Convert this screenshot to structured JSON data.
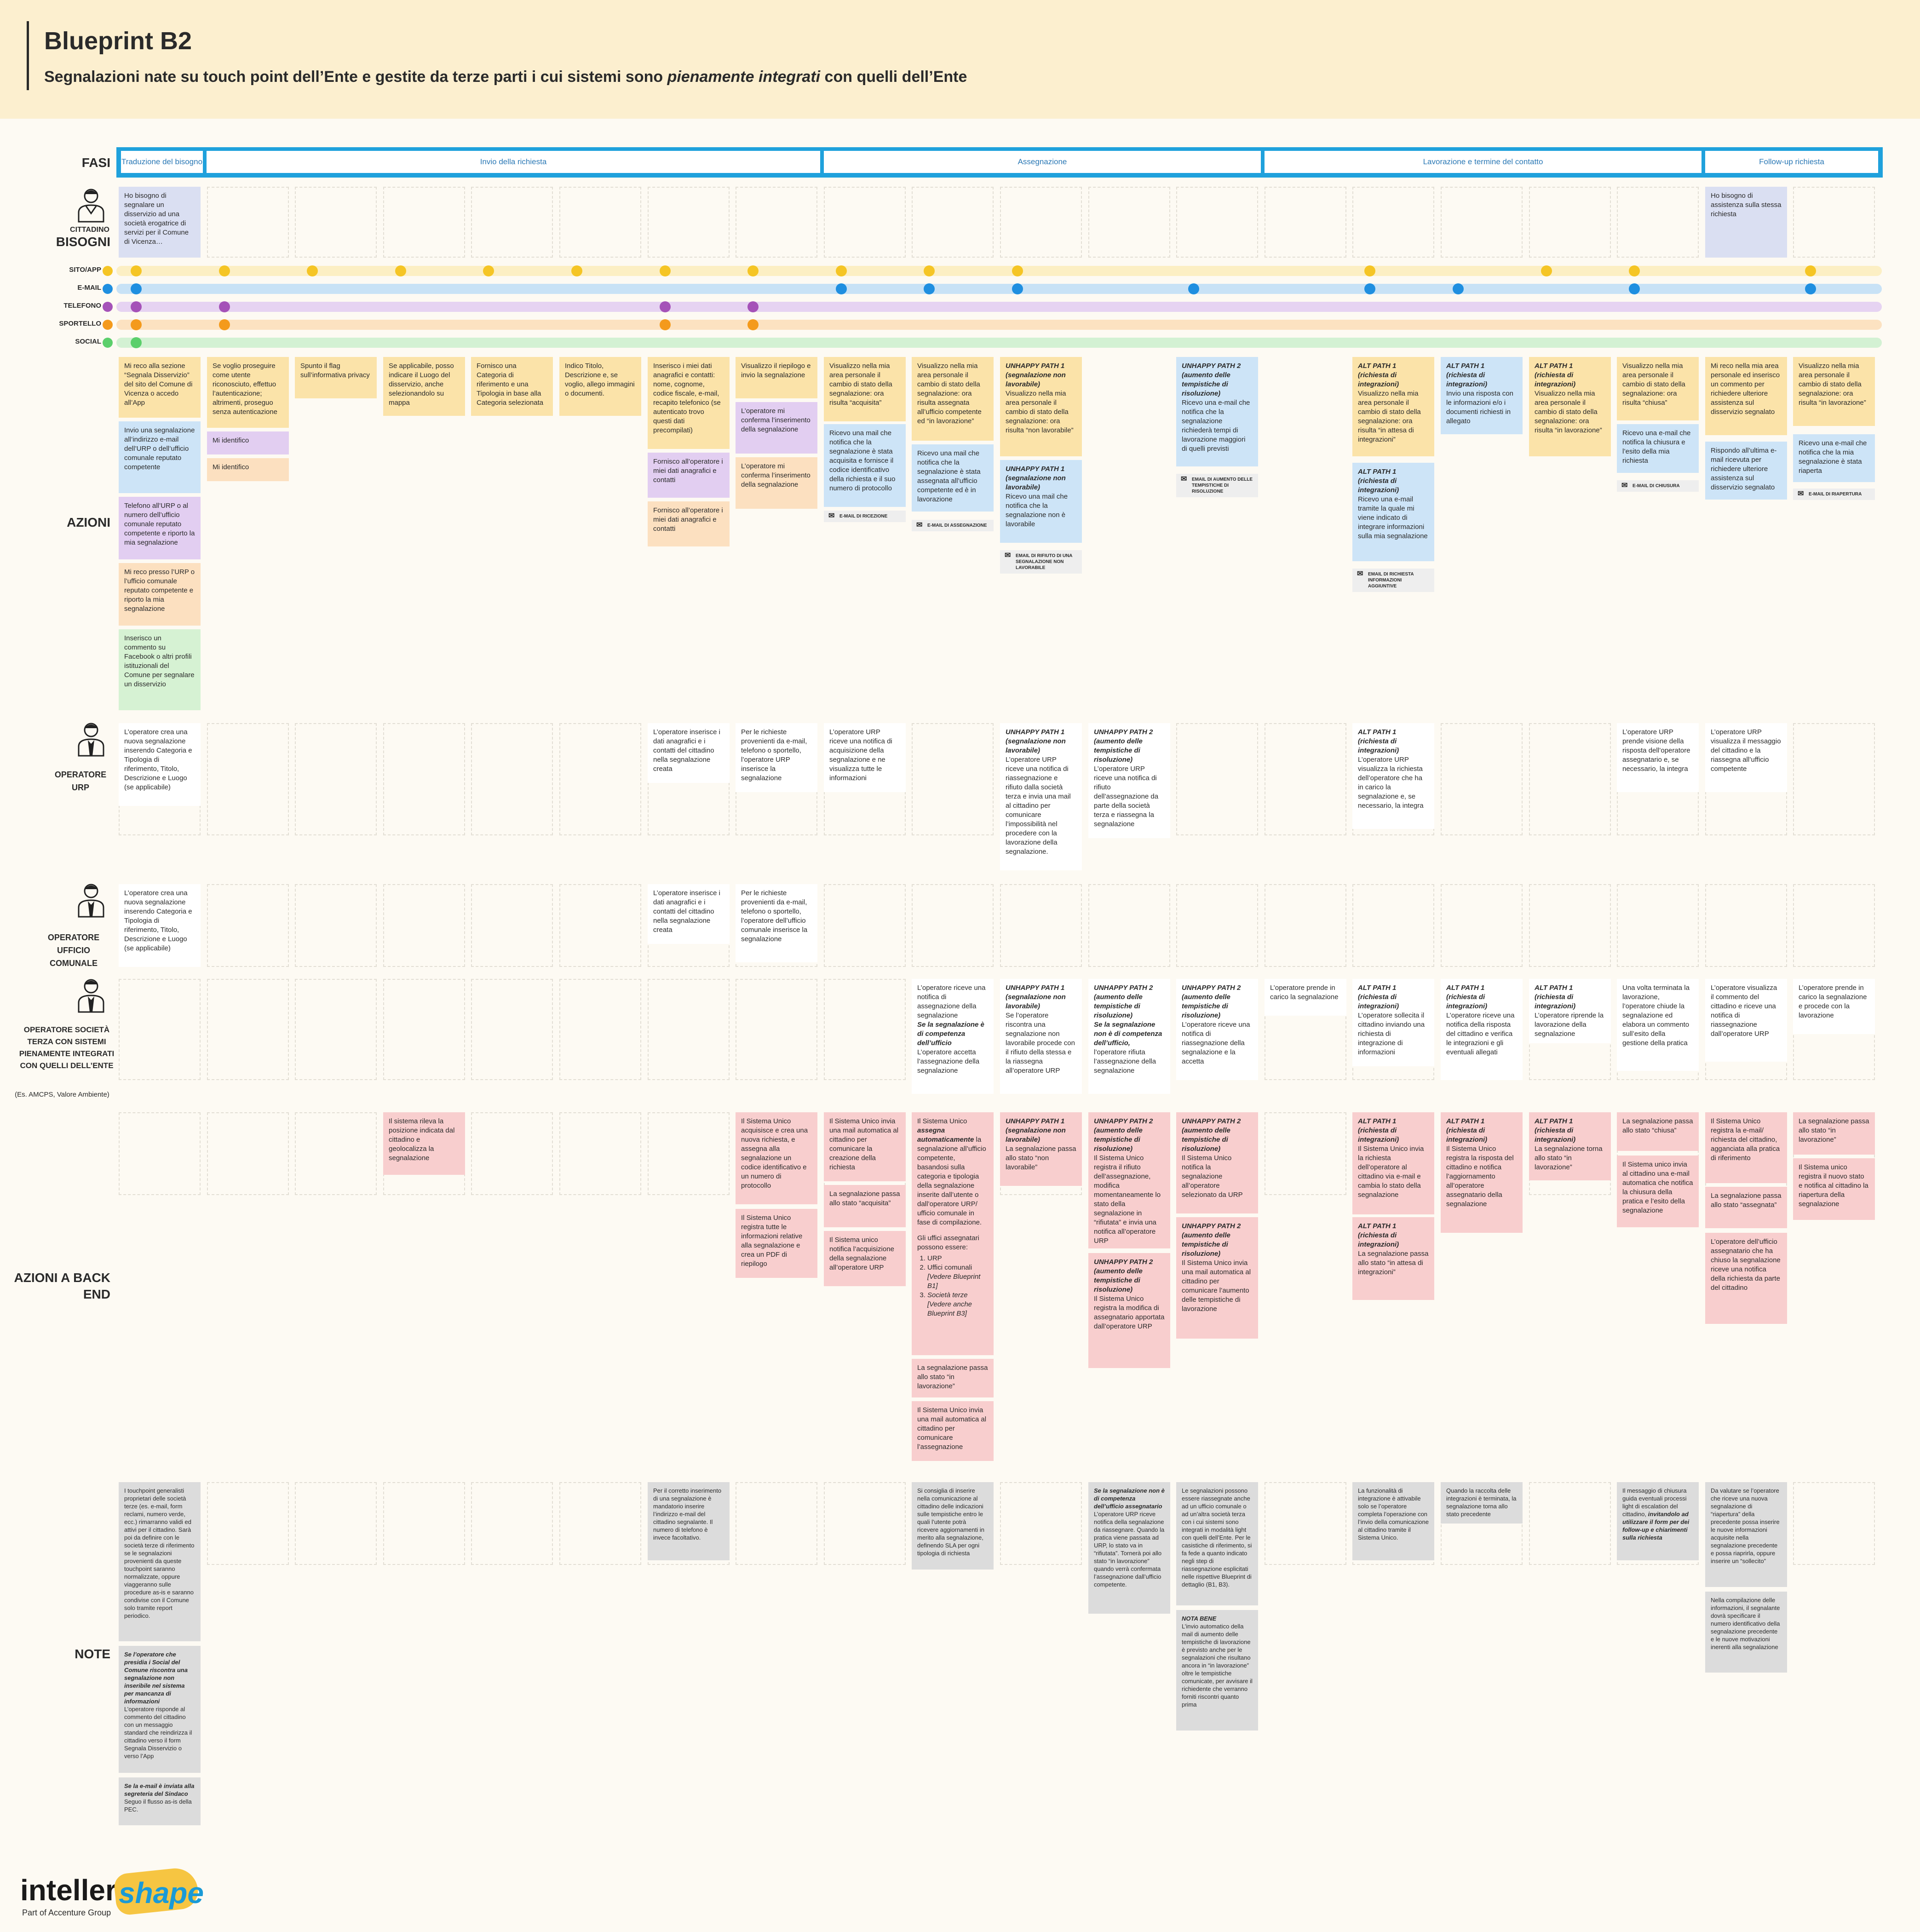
{
  "header": {
    "title": "Blueprint B2",
    "subtitle_pre": "Segnalazioni nate su touch point dell’Ente e gestite da terze parti i cui sistemi sono ",
    "subtitle_em": "pienamente integrati",
    "subtitle_post": " con quelli dell’Ente"
  },
  "labels": {
    "fasi": "FASI",
    "cittadino_role": "CITTADINO",
    "bisogni": "BISOGNI",
    "azioni": "AZIONI",
    "operatore_urp": "OPERATORE URP",
    "operatore_ufficio": "OPERATORE UFFICIO COMUNALE",
    "operatore_terza": "OPERATORE SOCIETÀ TERZA CON SISTEMI PIENAMENTE INTEGRATI CON QUELLI DELL’ENTE",
    "operatore_terza_note": "(Es. AMCPS, Valore Ambiente)",
    "azioni_backend": "AZIONI A BACK END",
    "note": "NOTE"
  },
  "phases": [
    "Traduzione del bisogno",
    "Invio della richiesta",
    "Assegnazione",
    "Lavorazione e termine del contatto",
    "Follow-up richiesta"
  ],
  "channels": [
    {
      "label": "SITO/APP",
      "color": "#f5c525",
      "lane": "#fcefc4"
    },
    {
      "label": "E-MAIL",
      "color": "#1f8fe0",
      "lane": "#c8e2f6"
    },
    {
      "label": "TELEFONO",
      "color": "#a552b8",
      "lane": "#e6d3f2"
    },
    {
      "label": "SPORTELLO",
      "color": "#f49a1c",
      "lane": "#fce2c1"
    },
    {
      "label": "SOCIAL",
      "color": "#5bcf6b",
      "lane": "#d3f1d3"
    }
  ],
  "bisogni": {
    "c1": "Ho bisogno di segnalare un disservizio ad una società erogatrice di servizi per il Comune di Vicenza…",
    "c19": "Ho bisogno di assistenza sulla stessa richiesta"
  },
  "azioni": {
    "c1_1": "Mi reco alla sezione “Segnala Disservizio” del sito del Comune di Vicenza o accedo all’App",
    "c1_2": "Invio una segnalazione all’indirizzo e-mail dell’URP o dell’ufficio comunale reputato competente",
    "c1_3": "Telefono all’URP o al numero dell’ufficio comunale reputato competente e riporto la mia segnalazione",
    "c1_4": "Mi reco presso l’URP o l’ufficio comunale reputato competente e riporto la mia segnalazione",
    "c1_5": "Inserisco un commento su Facebook o altri profili istituzionali del Comune per segnalare un disservizio",
    "c2_1": "Se voglio proseguire come utente riconosciuto, effettuo l’autenticazione; altrimenti, proseguo senza autenticazione",
    "c2_2": "Mi identifico",
    "c2_3": "Mi identifico",
    "c3": "Spunto il flag sull’informativa privacy",
    "c4": "Se applicabile, posso indicare il Luogo del disservizio, anche selezionandolo su mappa",
    "c5": "Fornisco una Categoria di riferimento e una Tipologia in base alla Categoria selezionata",
    "c6": "Indico Titolo, Descrizione e, se voglio, allego immagini o documenti.",
    "c7_1": "Inserisco i miei dati anagrafici e contatti: nome, cognome, codice fiscale, e-mail, recapito telefonico (se autenticato trovo questi dati precompilati)",
    "c7_2": "Fornisco all’operatore i miei dati anagrafici e contatti",
    "c7_3": "Fornisco all’operatore i miei dati anagrafici e contatti",
    "c8_1": "Visualizzo il riepilogo e invio la segnalazione",
    "c8_2": "L’operatore mi conferma l’inserimento della segnalazione",
    "c8_3": "L’operatore mi conferma l’inserimento della segnalazione",
    "c9_1": "Visualizzo nella mia area personale il cambio di stato della segnalazione: ora risulta “acquisita”",
    "c9_2": "Ricevo una mail che notifica che la segnalazione è stata acquisita e fornisce il codice identificativo della richiesta e il suo numero di protocollo",
    "c9_tag": "E-MAIL DI RICEZIONE",
    "c10_1": "Visualizzo nella mia area personale il cambio di stato della segnalazione: ora risulta assegnata all’ufficio competente ed “in lavorazione”",
    "c10_2": "Ricevo una mail che notifica che la segnalazione è stata assegnata all’ufficio competente ed è in lavorazione",
    "c10_tag": "E-MAIL DI ASSEGNAZIONE",
    "c11_1h": "UNHAPPY PATH 1 (segnalazione non lavorabile)",
    "c11_1": "Visualizzo nella mia area personale il cambio di stato della segnalazione: ora risulta “non lavorabile”",
    "c11_2h": "UNHAPPY PATH 1 (segnalazione non lavorabile)",
    "c11_2": "Ricevo una mail che notifica che la segnalazione non è lavorabile",
    "c11_tag": "EMAIL DI RIFIUTO DI UNA SEGNALAZIONE NON LAVORABILE",
    "c13_h": "UNHAPPY PATH 2 (aumento delle tempistiche di risoluzione)",
    "c13": "Ricevo una e-mail che notifica che la segnalazione richiederà tempi di lavorazione maggiori di quelli previsti",
    "c13_tag": "EMAIL DI AUMENTO DELLE TEMPISTICHE DI RISOLUZIONE",
    "c15_1h": "ALT PATH 1 (richiesta di integrazioni)",
    "c15_1": "Visualizzo nella mia area personale il cambio di stato della segnalazione: ora risulta “in attesa di integrazioni”",
    "c15_2h": "ALT PATH 1 (richiesta di integrazioni)",
    "c15_2": "Ricevo una e-mail tramite la quale mi viene indicato di integrare informazioni sulla mia segnalazione",
    "c15_tag": "EMAIL DI RICHIESTA INFORMAZIONI AGGIUNTIVE",
    "c16_h": "ALT PATH 1 (richiesta di integrazioni)",
    "c16": "Invio una risposta con le informazioni e/o i documenti richiesti in allegato",
    "c17_h": "ALT PATH 1 (richiesta di integrazioni)",
    "c17": "Visualizzo nella mia area personale il cambio di stato della segnalazione: ora risulta “in lavorazione”",
    "c18_1": "Visualizzo nella mia area personale il cambio di stato della segnalazione: ora risulta “chiusa”",
    "c18_2": "Ricevo una e-mail che notifica la chiusura e l’esito della mia richiesta",
    "c18_tag": "E-MAIL DI CHIUSURA",
    "c19_1": "Mi reco nella mia area personale ed inserisco un commento per richiedere ulteriore assistenza sul disservizio segnalato",
    "c19_2": "Rispondo all’ultima e-mail ricevuta per richiedere ulteriore assistenza sul disservizio segnalato",
    "c20_1": "Visualizzo nella mia area personale il cambio di stato della segnalazione: ora risulta “in lavorazione”",
    "c20_2": "Ricevo una e-mail che notifica che la mia segnalazione è stata riaperta",
    "c20_tag": "E-MAIL DI RIAPERTURA"
  },
  "urp": {
    "c1": "L’operatore crea una nuova segnalazione inserendo Categoria e Tipologia di riferimento, Titolo, Descrizione e Luogo (se applicabile)",
    "c7": "L’operatore inserisce i dati anagrafici e i contatti del cittadino nella segnalazione creata",
    "c8": "Per le richieste provenienti da e-mail, telefono o sportello, l’operatore URP inserisce la segnalazione",
    "c9": "L’operatore URP riceve una notifica di acquisizione della segnalazione e ne visualizza tutte le informazioni",
    "c11_h": "UNHAPPY PATH 1 (segnalazione non lavorabile)",
    "c11": "L’operatore URP riceve una notifica di riassegnazione e rifiuto dalla società terza e invia una mail al cittadino per comunicare l’impossibilità nel procedere con la lavorazione della segnalazione.",
    "c12_h": "UNHAPPY PATH 2 (aumento delle tempistiche di risoluzione)",
    "c12": "L’operatore URP riceve una notifica di rifiuto dell’assegnazione da parte della società terza e riassegna la segnalazione",
    "c15_h": "ALT PATH 1 (richiesta di integrazioni)",
    "c15": "L’operatore URP visualizza la richiesta dell’operatore che ha in carico la segnalazione e, se necessario, la integra",
    "c18": "L’operatore URP prende visione della risposta dell’operatore assegnatario e, se necessario, la integra",
    "c19": "L’operatore URP visualizza il messaggio del cittadino e la riassegna all’ufficio competente"
  },
  "ufficio": {
    "c1": "L’operatore crea una nuova segnalazione inserendo Categoria e Tipologia di riferimento, Titolo, Descrizione e Luogo (se applicabile)",
    "c7": "L’operatore inserisce i dati anagrafici e i contatti del cittadino nella segnalazione creata",
    "c8": "Per le richieste provenienti da e-mail, telefono o sportello, l’operatore dell’ufficio comunale inserisce la segnalazione"
  },
  "terza": {
    "c10": "L’operatore riceve una notifica di assegnazione della segnalazione",
    "c10_h": "Se la segnalazione è di competenza dell’ufficio",
    "c10_b": "L’operatore accetta l’assegnazione della segnalazione",
    "c11_h": "UNHAPPY PATH 1 (segnalazione non lavorabile)",
    "c11": "Se l’operatore riscontra una segnalazione non lavorabile procede con il rifiuto della stessa e la riassegna all’operatore URP",
    "c12_h": "UNHAPPY PATH 2 (aumento delle tempistiche di risoluzione)",
    "c12_s": "Se la segnalazione non è di competenza dell’ufficio,",
    "c12": "l’operatore rifiuta l’assegnazione della segnalazione",
    "c13_h": "UNHAPPY PATH 2 (aumento delle tempistiche di risoluzione)",
    "c13": "L’operatore riceve una notifica di riassegnazione della segnalazione e la accetta",
    "c14": "L’operatore prende in carico la segnalazione",
    "c15_h": "ALT PATH 1 (richiesta di integrazioni)",
    "c15": "L’operatore sollecita il cittadino inviando una richiesta di integrazione di informazioni",
    "c16_h": "ALT PATH 1 (richiesta di integrazioni)",
    "c16": "L’operatore riceve una notifica della risposta del cittadino e verifica le integrazioni e gli eventuali allegati",
    "c17_h": "ALT PATH 1 (richiesta di integrazioni)",
    "c17": "L’operatore riprende la lavorazione della segnalazione",
    "c18": "Una volta terminata la lavorazione, l’operatore chiude la segnalazione ed elabora un commento sull’esito della gestione della pratica",
    "c19": "L’operatore visualizza il commento del cittadino e riceve una notifica di riassegnazione dall’operatore URP",
    "c20": "L’operatore prende in carico la segnalazione e procede con la lavorazione"
  },
  "backend": {
    "c4": "Il sistema rileva la posizione indicata dal cittadino e geolocalizza la segnalazione",
    "c8_1": "Il Sistema Unico acquisisce e crea una nuova richiesta, e assegna alla segnalazione un codice identificativo e un numero di protocollo",
    "c8_2": "Il Sistema Unico registra tutte le informazioni relative alla segnalazione e crea un PDF di riepilogo",
    "c9_1": "Il Sistema Unico invia una mail automatica al cittadino per comunicare la creazione della richiesta",
    "c9_2": "La segnalazione passa allo stato “acquisita”",
    "c9_3": "Il Sistema unico notifica l’acquisizione della segnalazione all’operatore URP",
    "c10_1a": "Il Sistema Unico ",
    "c10_1b": "assegna automaticamente",
    "c10_1c": " la segnalazione all’ufficio competente, basandosi sulla categoria e tipologia della segnalazione inserite dall’utente o dall’operatore URP/ ufficio comunale in fase di compilazione.",
    "c10_1d": "Gli uffici assegnatari possono essere:",
    "c10_l1": "URP",
    "c10_l2": "Uffici comunali",
    "c10_l2b": "[Vedere Blueprint B1]",
    "c10_l3": "Società terze",
    "c10_l3b": "[Vedere anche Blueprint B3]",
    "c10_2": "La segnalazione passa allo stato “in lavorazione”",
    "c10_3": "Il Sistema Unico invia una mail automatica al cittadino per comunicare l’assegnazione",
    "c11_h": "UNHAPPY PATH 1 (segnalazione non lavorabile)",
    "c11": "La segnalazione passa allo stato “non lavorabile”",
    "c12_1h": "UNHAPPY PATH 2 (aumento delle tempistiche di risoluzione)",
    "c12_1": "Il Sistema Unico registra il rifiuto dell’assegnazione, modifica momentaneamente lo stato della segnalazione in “rifiutata” e invia una notifica all’operatore URP",
    "c12_2h": "UNHAPPY PATH 2 (aumento delle tempistiche di risoluzione)",
    "c12_2": "Il Sistema Unico registra la modifica di assegnatario apportata dall’operatore URP",
    "c13_1h": "UNHAPPY PATH 2 (aumento delle tempistiche di risoluzione)",
    "c13_1": "Il Sistema Unico notifica la segnalazione all’operatore selezionato da URP",
    "c13_2h": "UNHAPPY PATH 2 (aumento delle tempistiche di risoluzione)",
    "c13_2": "Il Sistema Unico invia una mail automatica al cittadino per comunicare l’aumento delle tempistiche di lavorazione",
    "c15_1h": "ALT PATH 1 (richiesta di integrazioni)",
    "c15_1": "Il Sistema Unico invia la richiesta dell’operatore al cittadino via e-mail e cambia lo stato della segnalazione",
    "c15_2h": "ALT PATH 1 (richiesta di integrazioni)",
    "c15_2": "La segnalazione passa allo stato “in attesa di integrazioni”",
    "c16_h": "ALT PATH 1 (richiesta di integrazioni)",
    "c16": "Il Sistema Unico registra la risposta del cittadino e notifica l’aggiornamento all’operatore assegnatario della segnalazione",
    "c17_h": "ALT PATH 1 (richiesta di integrazioni)",
    "c17": "La segnalazione torna allo stato “in lavorazione”",
    "c18_1": "La segnalazione passa allo stato “chiusa”",
    "c18_2": "Il Sistema unico invia al cittadino una e-mail automatica che notifica la chiusura della pratica e l’esito della segnalazione",
    "c19_1": "Il Sistema Unico registra la e-mail/ richiesta del cittadino, agganciata alla pratica di riferimento",
    "c19_2": "La segnalazione passa allo stato “assegnata”",
    "c19_3": "L’operatore dell’ufficio assegnatario che ha chiuso la segnalazione riceve una notifica della richiesta da parte del cittadino",
    "c20_1": "La segnalazione passa allo stato “in lavorazione”",
    "c20_2": "Il Sistema unico registra il nuovo stato e notifica al cittadino la riapertura della segnalazione"
  },
  "notes": {
    "c1_1": "I touchpoint generalisti proprietari delle società terze (es. e-mail, form reclami, numero verde, ecc.) rimarranno validi ed attivi per il cittadino. Sarà poi da definire con le società terze di riferimento se le segnalazioni provenienti da queste touchpoint saranno normalizzate, oppure viaggeranno sulle procedure as-is e saranno condivise con il Comune solo tramite report periodico.",
    "c1_2h": "Se l’operatore che presidia i Social del Comune riscontra una segnalazione non inseribile nel sistema per mancanza di informazioni",
    "c1_2": "L’operatore risponde al commento del cittadino con un messaggio standard che reindirizza il cittadino verso il form Segnala Disservizio o verso l’App",
    "c1_3h": "Se la e-mail è inviata alla segreteria del Sindaco",
    "c1_3": "Seguo il flusso as-is della PEC.",
    "c7": "Per il corretto inserimento di una segnalazione è mandatorio inserire l’indirizzo e-mail del cittadino segnalante. Il numero di telefono è invece facoltativo.",
    "c10": "Si consiglia di inserire nella comunicazione al cittadino delle indicazioni sulle tempistiche entro le quali l’utente potrà ricevere aggiornamenti in merito alla segnalazione, definendo SLA per ogni tipologia di richiesta",
    "c12_h": "Se la segnalazione non è di competenza dell’ufficio assegnatario",
    "c12": "L’operatore URP riceve notifica della segnalazione da riassegnare. Quando la pratica viene passata ad URP, lo stato va in “rifiutata”. Tornerà poi allo stato “in lavorazione” quando verrà confermata l’assegnazione dall’ufficio competente.",
    "c13_1": "Le segnalazioni possono essere riassegnate anche ad un ufficio comunale o ad un’altra società terza con i cui sistemi sono integrati in modalità light con quelli dell’Ente. Per le casistiche di riferimento, si fa fede a quanto indicato negli step di riassegnazione esplicitati nelle rispettive Blueprint di dettaglio (B1, B3).",
    "c13_2h": "NOTA BENE",
    "c13_2": "L’invio automatico della mail di aumento delle tempistiche di lavorazione è previsto anche per le segnalazioni che risultano ancora in “in lavorazione” oltre le tempistiche comunicate, per avvisare il richiedente che verranno forniti riscontri quanto prima",
    "c15": "La funzionalità di integrazione è attivabile solo se l’operatore completa l’operazione con l’invio della comunicazione al cittadino tramite il Sistema Unico.",
    "c16": "Quando la raccolta delle integrazioni è terminata, la segnalazione torna allo stato precedente",
    "c18a": "Il messaggio di chiusura guida eventuali processi light di escalation del cittadino, ",
    "c18b": "invitandolo ad utilizzare il form per dei follow-up e chiarimenti sulla richiesta",
    "c19_1": "Da valutare se l’operatore che riceve una nuova segnalazione di “riapertura” della precedente possa inserire le nuove informazioni acquisite nella segnalazione precedente e possa riaprirla, oppure inserire un “sollecito”",
    "c19_2": "Nella compilazione delle informazioni, il segnalante dovrà specificare il numero identificativo della segnalazione precedente e le nuove motivazioni inerenti alla segnalazione"
  },
  "logos": {
    "brand": "intellera",
    "brand_sub": "Part of Accenture Group",
    "brand2": "shape"
  }
}
